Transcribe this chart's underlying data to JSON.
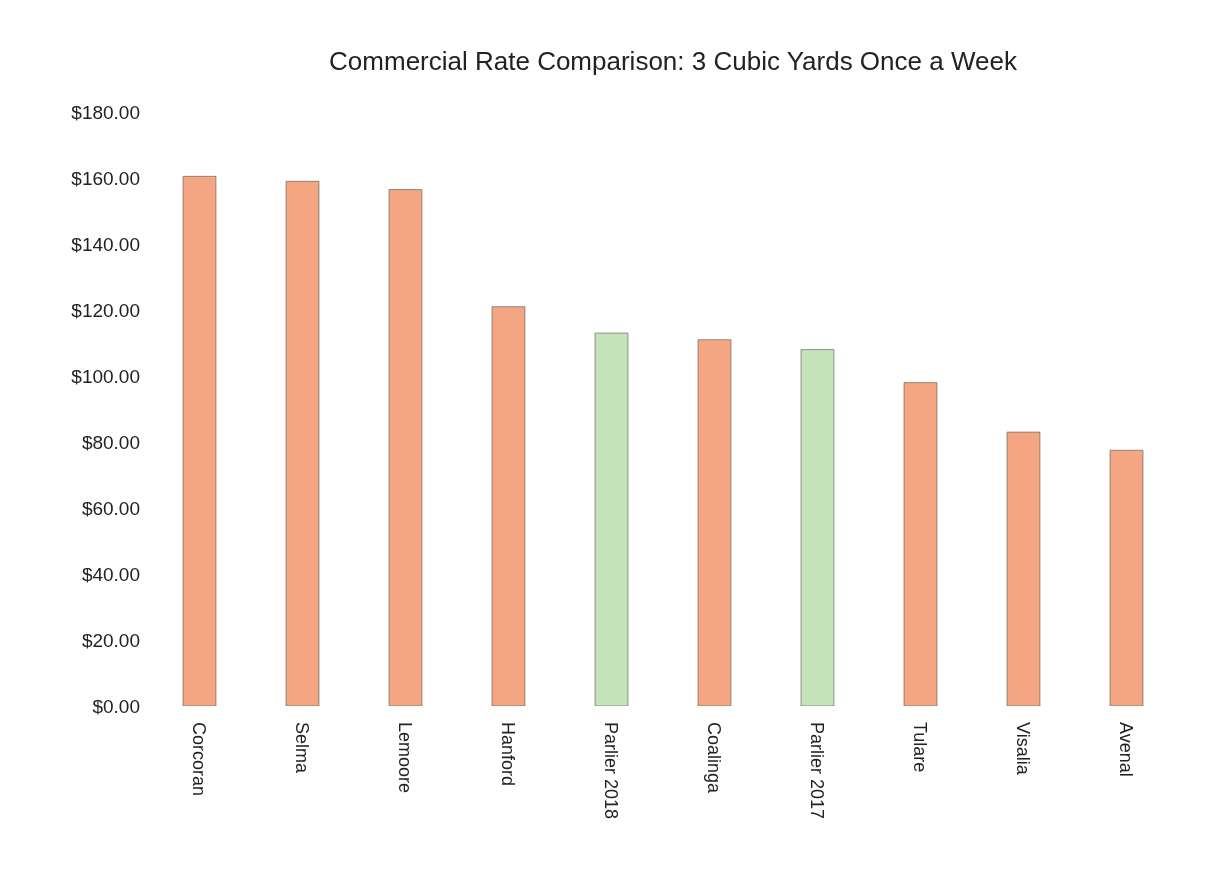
{
  "chart_data": {
    "type": "bar",
    "title": "Commercial Rate Comparison:  3 Cubic Yards Once a Week",
    "categories": [
      "Corcoran",
      "Selma",
      "Lemoore",
      "Hanford",
      "Parlier 2018",
      "Coalinga",
      "Parlier 2017",
      "Tulare",
      "Visalia",
      "Avenal"
    ],
    "values": [
      160.5,
      159,
      156.5,
      121,
      113,
      111,
      108,
      98,
      83,
      77.5
    ],
    "colors": [
      "#f4a582",
      "#f4a582",
      "#f4a582",
      "#f4a582",
      "#c4e3b9",
      "#f4a582",
      "#c4e3b9",
      "#f4a582",
      "#f4a582",
      "#f4a582"
    ],
    "ylim": [
      0,
      180
    ],
    "yticks": [
      {
        "value": 0,
        "label": "$0.00"
      },
      {
        "value": 20,
        "label": "$20.00"
      },
      {
        "value": 40,
        "label": "$40.00"
      },
      {
        "value": 60,
        "label": "$60.00"
      },
      {
        "value": 80,
        "label": "$80.00"
      },
      {
        "value": 100,
        "label": "$100.00"
      },
      {
        "value": 120,
        "label": "$120.00"
      },
      {
        "value": 140,
        "label": "$140.00"
      },
      {
        "value": 160,
        "label": "$160.00"
      },
      {
        "value": 180,
        "label": "$180.00"
      }
    ],
    "grid": false,
    "legend": false
  }
}
